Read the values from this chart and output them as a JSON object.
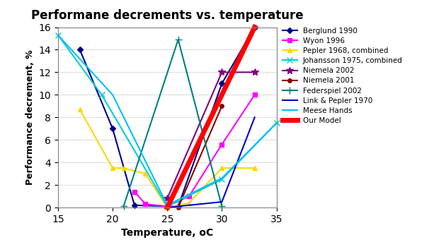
{
  "title": "Performane decrements vs. temperature",
  "xlabel": "Temperature, oC",
  "ylabel": "Performance decrement, %",
  "xlim": [
    15,
    35
  ],
  "ylim": [
    0,
    16
  ],
  "yticks": [
    0,
    2,
    4,
    6,
    8,
    10,
    12,
    14,
    16
  ],
  "xticks": [
    15,
    20,
    25,
    30,
    35
  ],
  "series": {
    "Berglund 1990": {
      "x": [
        17,
        20,
        22,
        25,
        26,
        30,
        33
      ],
      "y": [
        14,
        7,
        0.2,
        0.1,
        0.1,
        11,
        16
      ],
      "color": "#00008B",
      "marker": "D",
      "linestyle": "-",
      "linewidth": 1.5,
      "markersize": 4
    },
    "Wyon 1996": {
      "x": [
        22,
        23,
        25,
        27,
        30,
        33
      ],
      "y": [
        1.4,
        0.3,
        0.1,
        1.0,
        5.6,
        10
      ],
      "color": "#FF00FF",
      "marker": "s",
      "linestyle": "-",
      "linewidth": 1.5,
      "markersize": 4
    },
    "Pepler 1968, combined": {
      "x": [
        17,
        20,
        21,
        23,
        25,
        27,
        30,
        33
      ],
      "y": [
        8.7,
        3.5,
        3.5,
        3.0,
        0.0,
        0.4,
        3.5,
        3.5
      ],
      "color": "#FFD700",
      "marker": "^",
      "linestyle": "-",
      "linewidth": 1.5,
      "markersize": 4
    },
    "Johansson 1975, combined": {
      "x": [
        15,
        19,
        25,
        30,
        35
      ],
      "y": [
        15.3,
        10,
        0.1,
        2.5,
        7.5
      ],
      "color": "#00CED1",
      "marker": "x",
      "linestyle": "-",
      "linewidth": 1.5,
      "markersize": 6
    },
    "Niemela 2002": {
      "x": [
        25,
        30,
        33
      ],
      "y": [
        0.8,
        12,
        12
      ],
      "color": "#800080",
      "marker": "*",
      "linestyle": "-",
      "linewidth": 1.5,
      "markersize": 7
    },
    "Niemela 2001": {
      "x": [
        26,
        30
      ],
      "y": [
        0.0,
        9.0
      ],
      "color": "#8B0000",
      "marker": "o",
      "linestyle": "-",
      "linewidth": 1.5,
      "markersize": 4
    },
    "Federspiel 2002": {
      "x": [
        21,
        26,
        30
      ],
      "y": [
        0.1,
        14.9,
        0.1
      ],
      "color": "#008080",
      "marker": "+",
      "linestyle": "-",
      "linewidth": 1.5,
      "markersize": 7
    },
    "Link & Pepler 1970": {
      "x": [
        25,
        30,
        33
      ],
      "y": [
        0.0,
        0.5,
        8.0
      ],
      "color": "#0000CD",
      "marker": "None",
      "linestyle": "-",
      "linewidth": 1.5,
      "markersize": 4
    },
    "Meese Hands": {
      "x": [
        15,
        20,
        25,
        30,
        35
      ],
      "y": [
        15.3,
        10.0,
        0.2,
        2.6,
        7.5
      ],
      "color": "#00BFFF",
      "marker": "None",
      "linestyle": "-",
      "linewidth": 1.5,
      "markersize": 4
    },
    "Our Model": {
      "x": [
        25,
        33
      ],
      "y": [
        0.0,
        16.0
      ],
      "color": "#FF0000",
      "marker": "None",
      "linestyle": "-",
      "linewidth": 5,
      "markersize": 4
    }
  },
  "legend_order": [
    "Berglund 1990",
    "Wyon 1996",
    "Pepler 1968, combined",
    "Johansson 1975, combined",
    "Niemela 2002",
    "Niemela 2001",
    "Federspiel 2002",
    "Link & Pepler 1970",
    "Meese Hands",
    "Our Model"
  ]
}
